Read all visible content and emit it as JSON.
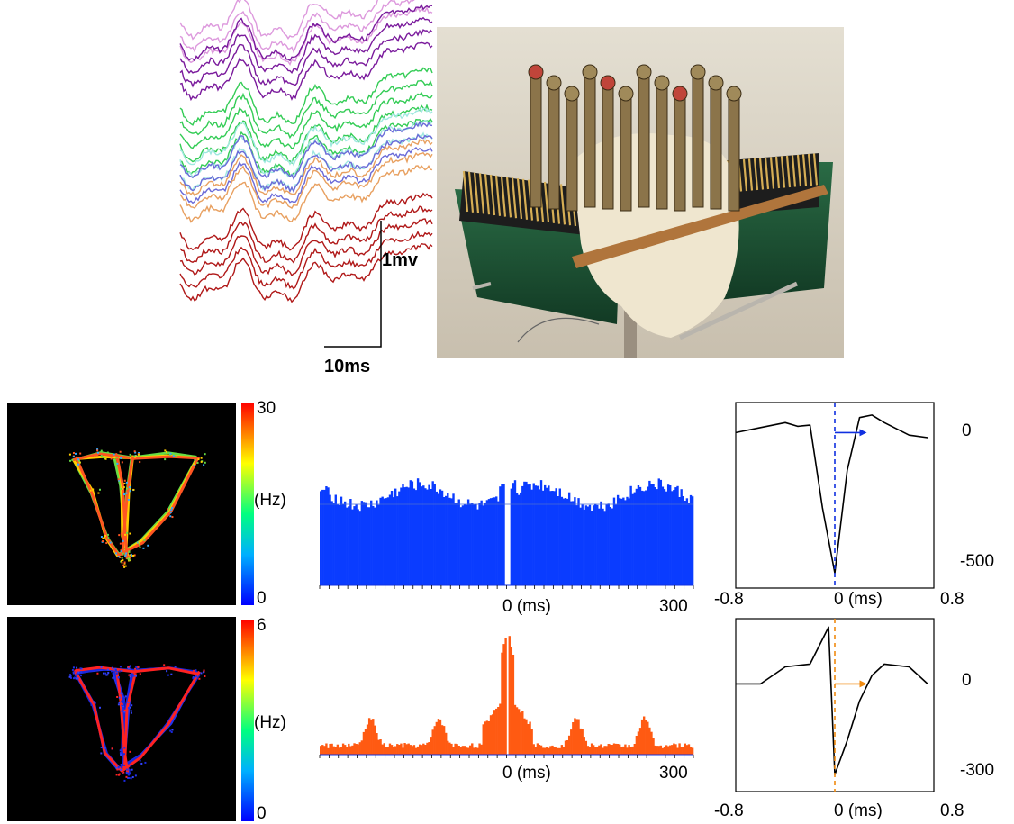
{
  "panel_a": {
    "scale_voltage": "1mv",
    "scale_time": "10ms",
    "trace_colors": [
      "#dd99dd",
      "#7a1a9c",
      "#33cc55",
      "#9fe8e0",
      "#6a6ad8",
      "#e8a060",
      "#b01818"
    ],
    "photo_description_colors": {
      "background": "#ddd6c8",
      "board": "#1f5a3a",
      "pins": "#c9a24a",
      "metal": "#8a7a55"
    }
  },
  "panel_b": {
    "rows": [
      {
        "id": "row1",
        "colorbar": {
          "max": "30",
          "unit": "(Hz)",
          "min": "0"
        },
        "histogram": {
          "color": "#0a3cff",
          "xlabel": "0 (ms)",
          "xmax": "300",
          "x": [
            -300,
            300
          ]
        },
        "waveform": {
          "xmin": "-0.8",
          "xmid": "0 (ms)",
          "xmax": "0.8",
          "ytick_top": "0",
          "ytick_bottom": "-500",
          "marker_color": "#1030e0"
        }
      },
      {
        "id": "row2",
        "colorbar": {
          "max": "6",
          "unit": "(Hz)",
          "min": "0"
        },
        "histogram": {
          "color": "#ff5a12",
          "xlabel": "0 (ms)",
          "xmax": "300",
          "x": [
            -300,
            300
          ]
        },
        "waveform": {
          "xmin": "-0.8",
          "xmid": "0 (ms)",
          "xmax": "0.8",
          "ytick_top": "0",
          "ytick_bottom": "-300",
          "marker_color": "#f08a10"
        }
      }
    ]
  },
  "chart_data": [
    {
      "type": "bar",
      "xlabel": "0 (ms)",
      "xlim": [
        -300,
        300
      ],
      "series": [
        {
          "values_description": "flat ~ baseline with central dip at 0"
        }
      ]
    },
    {
      "type": "bar",
      "xlabel": "0 (ms)",
      "xlim": [
        -300,
        300
      ],
      "series": [
        {
          "values_description": "rhythmic peaks every ~100ms, central double peak"
        }
      ]
    },
    {
      "type": "line",
      "x": [
        -0.8,
        -0.6,
        -0.4,
        -0.3,
        -0.2,
        -0.1,
        0.0,
        0.1,
        0.2,
        0.3,
        0.4,
        0.6,
        0.75
      ],
      "y": [
        0,
        20,
        40,
        25,
        30,
        -300,
        -560,
        -150,
        60,
        70,
        40,
        -10,
        -20
      ],
      "xlim": [
        -0.8,
        0.8
      ],
      "ylim": [
        -620,
        120
      ]
    },
    {
      "type": "line",
      "x": [
        -0.8,
        -0.6,
        -0.4,
        -0.2,
        -0.05,
        0.0,
        0.1,
        0.2,
        0.3,
        0.4,
        0.6,
        0.75
      ],
      "y": [
        0,
        0,
        60,
        70,
        200,
        -320,
        -200,
        -60,
        30,
        70,
        60,
        0
      ],
      "xlim": [
        -0.8,
        0.8
      ],
      "ylim": [
        -380,
        230
      ]
    }
  ]
}
